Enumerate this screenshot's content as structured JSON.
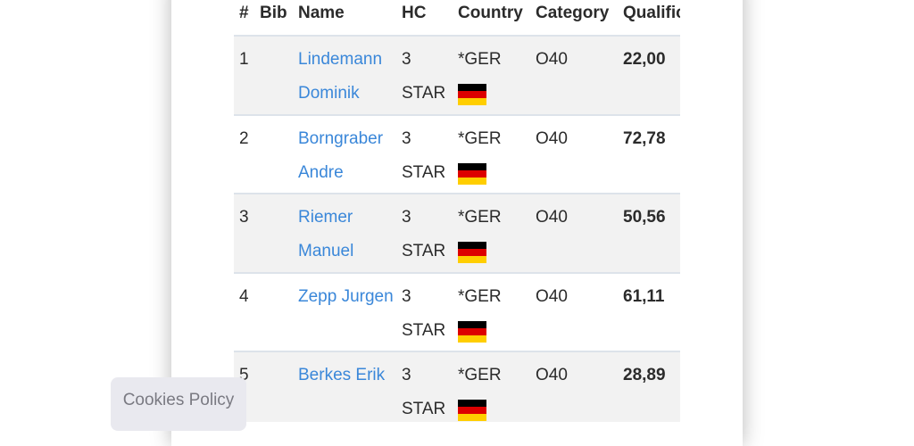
{
  "table": {
    "headers": [
      "#",
      "Bib",
      "Name",
      "HC",
      "Country",
      "Category",
      "Qualification"
    ],
    "rows": [
      {
        "rank": "1",
        "name": "Lindemann Dominik",
        "hc": "3 STAR",
        "country": "*GER",
        "category": "O40",
        "score": "22,00"
      },
      {
        "rank": "2",
        "name": "Borngraber Andre",
        "hc": "3 STAR",
        "country": "*GER",
        "category": "O40",
        "score": "72,78"
      },
      {
        "rank": "3",
        "name": "Riemer Manuel",
        "hc": "3 STAR",
        "country": "*GER",
        "category": "O40",
        "score": "50,56"
      },
      {
        "rank": "4",
        "name": "Zepp Jurgen",
        "hc": "3 STAR",
        "country": "*GER",
        "category": "O40",
        "score": "61,11"
      },
      {
        "rank": "5",
        "name": "Berkes Erik",
        "hc": "3 STAR",
        "country": "*GER",
        "category": "O40",
        "score": "28,89"
      }
    ]
  },
  "cookies_button": "Cookies Policy"
}
